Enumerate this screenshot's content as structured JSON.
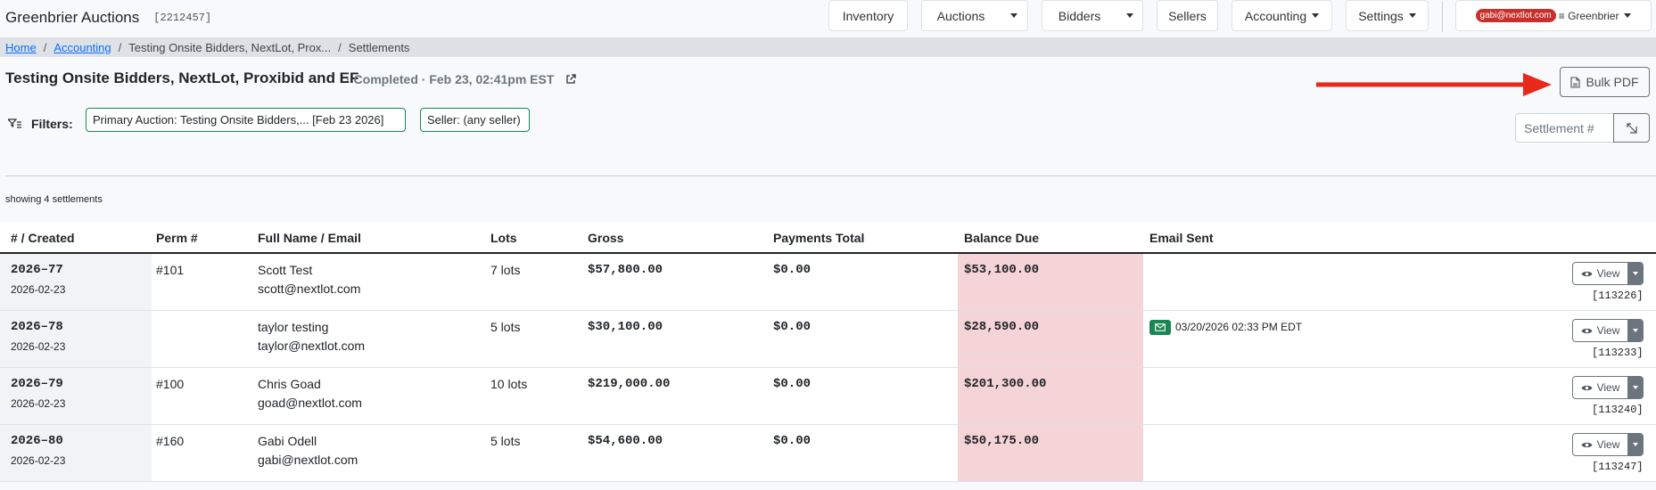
{
  "app": {
    "title": "Greenbrier Auctions",
    "id": "[2212457]"
  },
  "nav": {
    "inventory": "Inventory",
    "auctions": "Auctions",
    "bidders": "Bidders",
    "sellers": "Sellers",
    "accounting": "Accounting",
    "settings": "Settings",
    "user_email": "gabi@nextlot.com",
    "user_org": "≡ Greenbrier"
  },
  "breadcrumb": {
    "home": "Home",
    "accounting": "Accounting",
    "auction": "Testing Onsite Bidders, NextLot, Prox...",
    "current": "Settlements"
  },
  "page": {
    "title": "Testing Onsite Bidders, NextLot, Proxibid and EF",
    "status": "· Completed · Feb 23, 02:41pm EST",
    "bulk_pdf_label": "Bulk PDF"
  },
  "filters": {
    "label": "Filters:",
    "primary_auction": "Primary Auction: Testing Onsite Bidders,... [Feb 23 2026]",
    "seller": "Seller: (any seller)",
    "settlement_placeholder": "Settlement #"
  },
  "showing": "showing 4 settlements",
  "table": {
    "columns": [
      "# / Created",
      "Perm #",
      "Full Name / Email",
      "Lots",
      "Gross",
      "Payments Total",
      "Balance Due",
      "Email Sent"
    ],
    "view_label": "View",
    "rows": [
      {
        "number": "2026–77",
        "created": "2026-02-23",
        "perm": "#101",
        "name": "Scott Test",
        "email": "scott@nextlot.com",
        "lots": "7 lots",
        "gross": "$57,800.00",
        "payments": "$0.00",
        "balance": "$53,100.00",
        "email_sent": "",
        "view_id": "[113226]"
      },
      {
        "number": "2026–78",
        "created": "2026-02-23",
        "perm": "",
        "name": "taylor testing",
        "email": "taylor@nextlot.com",
        "lots": "5 lots",
        "gross": "$30,100.00",
        "payments": "$0.00",
        "balance": "$28,590.00",
        "email_sent": "03/20/2026 02:33 PM EDT",
        "view_id": "[113233]"
      },
      {
        "number": "2026–79",
        "created": "2026-02-23",
        "perm": "#100",
        "name": "Chris Goad",
        "email": "goad@nextlot.com",
        "lots": "10 lots",
        "gross": "$219,000.00",
        "payments": "$0.00",
        "balance": "$201,300.00",
        "email_sent": "",
        "view_id": "[113240]"
      },
      {
        "number": "2026–80",
        "created": "2026-02-23",
        "perm": "#160",
        "name": "Gabi Odell",
        "email": "gabi@nextlot.com",
        "lots": "5 lots",
        "gross": "$54,600.00",
        "payments": "$0.00",
        "balance": "$50,175.00",
        "email_sent": "",
        "view_id": "[113247]"
      }
    ]
  },
  "colors": {
    "accent_red": "#e8281a",
    "balance_bg": "#f5d4d8",
    "success": "#198754",
    "badge_red": "#c9302c"
  }
}
